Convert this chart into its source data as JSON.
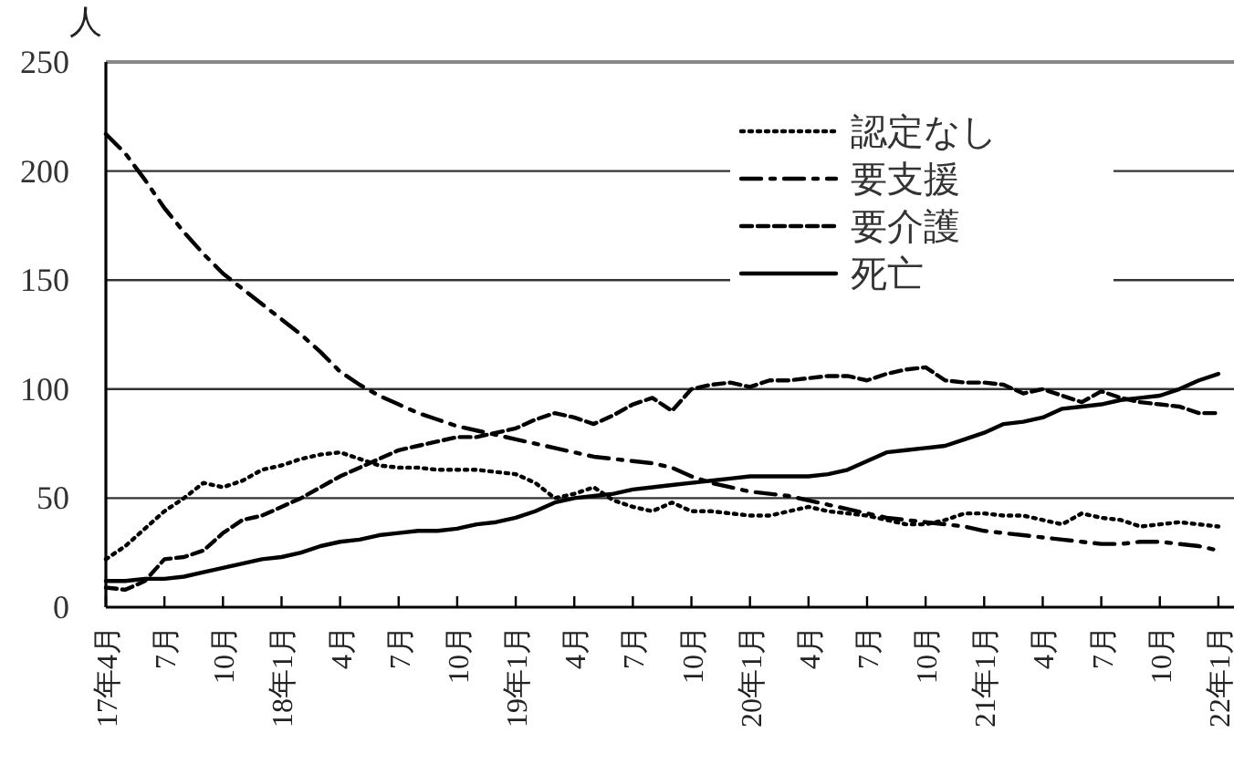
{
  "chart_data": {
    "type": "line",
    "ylabel": "人",
    "categories": [
      "17年4月",
      null,
      null,
      "7月",
      null,
      null,
      "10月",
      null,
      null,
      "18年1月",
      null,
      null,
      "4月",
      null,
      null,
      "7月",
      null,
      null,
      "10月",
      null,
      null,
      "19年1月",
      null,
      null,
      "4月",
      null,
      null,
      "7月",
      null,
      null,
      "10月",
      null,
      null,
      "20年1月",
      null,
      null,
      "4月",
      null,
      null,
      "7月",
      null,
      null,
      "10月",
      null,
      null,
      "21年1月",
      null,
      null,
      "4月",
      null,
      null,
      "7月",
      null,
      null,
      "10月",
      null,
      null,
      "22年1月"
    ],
    "series": [
      {
        "name": "認定なし",
        "color": "#000000",
        "line_style": "dotted",
        "values": [
          22,
          28,
          36,
          44,
          50,
          57,
          55,
          58,
          63,
          65,
          68,
          70,
          71,
          68,
          65,
          64,
          64,
          63,
          63,
          63,
          62,
          61,
          57,
          50,
          52,
          55,
          49,
          46,
          44,
          48,
          44,
          44,
          43,
          42,
          42,
          44,
          46,
          44,
          43,
          42,
          40,
          38,
          38,
          40,
          43,
          43,
          42,
          42,
          40,
          38,
          43,
          41,
          40,
          37,
          38,
          39,
          38,
          37
        ]
      },
      {
        "name": "要支援",
        "color": "#000000",
        "line_style": "dashdot",
        "values": [
          217,
          208,
          196,
          183,
          172,
          162,
          153,
          146,
          139,
          132,
          125,
          117,
          108,
          102,
          97,
          93,
          89,
          86,
          83,
          81,
          79,
          77,
          75,
          73,
          71,
          69,
          68,
          67,
          66,
          64,
          60,
          57,
          55,
          53,
          52,
          51,
          49,
          47,
          45,
          43,
          41,
          40,
          39,
          38,
          37,
          35,
          34,
          33,
          32,
          31,
          30,
          29,
          29,
          30,
          30,
          29,
          28,
          26
        ]
      },
      {
        "name": "要介護",
        "color": "#000000",
        "line_style": "dashed",
        "values": [
          9,
          8,
          12,
          22,
          23,
          26,
          34,
          40,
          42,
          46,
          50,
          55,
          60,
          64,
          68,
          72,
          74,
          76,
          78,
          78,
          80,
          82,
          86,
          89,
          87,
          84,
          88,
          93,
          96,
          90,
          100,
          102,
          103,
          101,
          104,
          104,
          105,
          106,
          106,
          104,
          107,
          109,
          110,
          104,
          103,
          103,
          102,
          98,
          100,
          97,
          94,
          99,
          96,
          94,
          93,
          92,
          89,
          89
        ]
      },
      {
        "name": "死亡",
        "color": "#000000",
        "line_style": "solid",
        "values": [
          12,
          12,
          13,
          13,
          14,
          16,
          18,
          20,
          22,
          23,
          25,
          28,
          30,
          31,
          33,
          34,
          35,
          35,
          36,
          38,
          39,
          41,
          44,
          48,
          50,
          51,
          52,
          54,
          55,
          56,
          57,
          58,
          59,
          60,
          60,
          60,
          60,
          61,
          63,
          67,
          71,
          72,
          73,
          74,
          77,
          80,
          84,
          85,
          87,
          91,
          92,
          93,
          95,
          96,
          97,
          100,
          104,
          107
        ]
      }
    ],
    "ylim": [
      0,
      250
    ],
    "yticks": [
      0,
      50,
      100,
      150,
      200,
      250
    ],
    "grid": "y",
    "legend": "top right"
  }
}
